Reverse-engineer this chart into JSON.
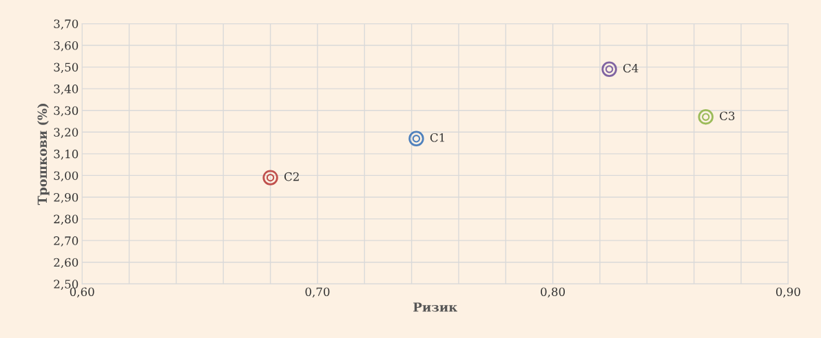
{
  "chart_data": {
    "type": "scatter",
    "xlabel": "Ризик",
    "ylabel": "Трошкови (%)",
    "series": [
      {
        "name": "C1",
        "color": "#4f81bd",
        "x": [
          0.742
        ],
        "values": [
          3.17
        ]
      },
      {
        "name": "C2",
        "color": "#c0504d",
        "x": [
          0.68
        ],
        "values": [
          2.99
        ]
      },
      {
        "name": "C3",
        "color": "#9bbb59",
        "x": [
          0.865
        ],
        "values": [
          3.27
        ]
      },
      {
        "name": "C4",
        "color": "#8064a2",
        "x": [
          0.824
        ],
        "values": [
          3.49
        ]
      }
    ],
    "xlim": [
      0.6,
      0.9
    ],
    "xticks": [
      {
        "value": 0.6,
        "label": "0,60"
      },
      {
        "value": 0.62,
        "label": null
      },
      {
        "value": 0.64,
        "label": null
      },
      {
        "value": 0.66,
        "label": null
      },
      {
        "value": 0.68,
        "label": null
      },
      {
        "value": 0.7,
        "label": "0,70"
      },
      {
        "value": 0.72,
        "label": null
      },
      {
        "value": 0.74,
        "label": null
      },
      {
        "value": 0.76,
        "label": null
      },
      {
        "value": 0.78,
        "label": null
      },
      {
        "value": 0.8,
        "label": "0,80"
      },
      {
        "value": 0.82,
        "label": null
      },
      {
        "value": 0.84,
        "label": null
      },
      {
        "value": 0.86,
        "label": null
      },
      {
        "value": 0.88,
        "label": null
      },
      {
        "value": 0.9,
        "label": "0,90"
      }
    ],
    "ylim": [
      2.5,
      3.7
    ],
    "yticks": [
      {
        "value": 2.5,
        "label": "2,50"
      },
      {
        "value": 2.6,
        "label": "2,60"
      },
      {
        "value": 2.7,
        "label": "2,70"
      },
      {
        "value": 2.8,
        "label": "2,80"
      },
      {
        "value": 2.9,
        "label": "2,90"
      },
      {
        "value": 3.0,
        "label": "3,00"
      },
      {
        "value": 3.1,
        "label": "3,10"
      },
      {
        "value": 3.2,
        "label": "3,20"
      },
      {
        "value": 3.3,
        "label": "3,30"
      },
      {
        "value": 3.4,
        "label": "3,40"
      },
      {
        "value": 3.5,
        "label": "3,50"
      },
      {
        "value": 3.6,
        "label": "3,60"
      },
      {
        "value": 3.7,
        "label": "3,70"
      }
    ],
    "grid": true,
    "legend": false,
    "marker": "circle"
  }
}
